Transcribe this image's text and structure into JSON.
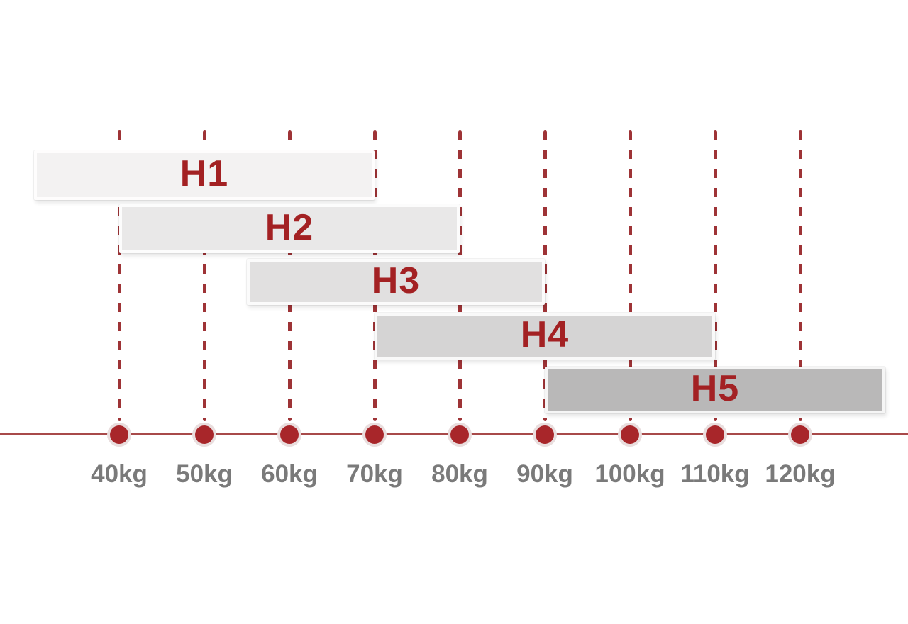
{
  "chart_data": {
    "type": "bar",
    "variant": "horizontal-range-bars",
    "title": "",
    "xlabel": "",
    "ylabel": "",
    "x_unit": "kg",
    "xlim": [
      30,
      130
    ],
    "x_ticks": [
      40,
      50,
      60,
      70,
      80,
      90,
      100,
      110,
      120
    ],
    "x_tick_labels": [
      "40kg",
      "50kg",
      "60kg",
      "70kg",
      "80kg",
      "90kg",
      "100kg",
      "110kg",
      "120kg"
    ],
    "grid": "vertical-dashed",
    "legend": "none",
    "series": [
      {
        "name": "H1",
        "from_kg": 30,
        "to_kg": 70,
        "fill": "#f3f2f2",
        "clipped_start": true,
        "clipped_end": false
      },
      {
        "name": "H2",
        "from_kg": 40,
        "to_kg": 80,
        "fill": "#e9e8e8",
        "clipped_start": false,
        "clipped_end": false
      },
      {
        "name": "H3",
        "from_kg": 55,
        "to_kg": 90,
        "fill": "#e1e0e0",
        "clipped_start": false,
        "clipped_end": false
      },
      {
        "name": "H4",
        "from_kg": 70,
        "to_kg": 110,
        "fill": "#d5d4d4",
        "clipped_start": false,
        "clipped_end": false
      },
      {
        "name": "H5",
        "from_kg": 90,
        "to_kg": 130,
        "fill": "#b9b8b8",
        "clipped_start": false,
        "clipped_end": true
      }
    ]
  },
  "colors": {
    "bar_label_red": "#a32123",
    "gridline_dash_red": "#9e3336",
    "axis_line_red": "#a84a4a",
    "dot_fill_red": "#a8262a",
    "dot_ring": "#e9dede",
    "tick_label_gray": "#7a7a7a",
    "background": "#ffffff"
  }
}
